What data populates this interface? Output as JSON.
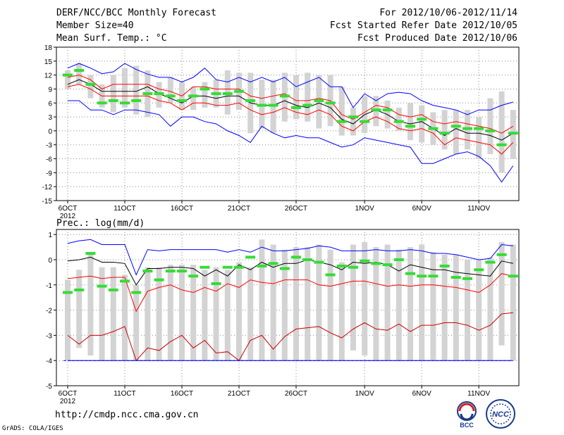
{
  "header": {
    "title": "DERF/NCC/BCC Monthly Forecast",
    "member_size": "Member Size=40",
    "variable": "Mean Surf. Temp.: °C",
    "forecast_period": "For 2012/10/06-2012/11/14",
    "started_date": "Fcst Started Refer Date 2012/10/05",
    "produced_date": "Fcst Produced Date 2012/10/06"
  },
  "footer": {
    "url": "http://cmdp.ncc.cma.gov.cn",
    "grads": "GrADS: COLA/IGES",
    "logo_left": "BCC",
    "logo_right": "NCC"
  },
  "colors": {
    "max_min": "#0000ff",
    "percentile": "#ff0000",
    "mean": "#000000",
    "observed": "#33dd33",
    "box": "#d3d3d3",
    "baseline": "#0000ff"
  },
  "chart_data": [
    {
      "type": "line",
      "title": "Mean Surf. Temp.: °C",
      "ylim": [
        -15,
        18
      ],
      "yticks": [
        -15,
        -12,
        -9,
        -6,
        -3,
        0,
        3,
        6,
        9,
        12,
        15,
        18
      ],
      "x_count": 40,
      "x_ticks": [
        {
          "i": 0,
          "label": "6OCT",
          "sub": "2012"
        },
        {
          "i": 5,
          "label": "11OCT"
        },
        {
          "i": 10,
          "label": "16OCT"
        },
        {
          "i": 15,
          "label": "21OCT"
        },
        {
          "i": 20,
          "label": "26OCT"
        },
        {
          "i": 26,
          "label": "1NOV"
        },
        {
          "i": 31,
          "label": "6NOV"
        },
        {
          "i": 36,
          "label": "11NOV"
        }
      ],
      "series": [
        {
          "name": "max",
          "color": "#0000ff",
          "values": [
            13.5,
            14.5,
            13.5,
            12.3,
            12.7,
            14.5,
            13.2,
            12.2,
            11.5,
            11.5,
            10.5,
            11.5,
            13.5,
            11.0,
            10.5,
            11.5,
            10.5,
            11.5,
            10.5,
            11.5,
            9.5,
            10.5,
            11.5,
            9.5,
            9.5,
            5.0,
            8.0,
            6.5,
            8.0,
            8.3,
            8.0,
            6.5,
            5.5,
            5.0,
            4.5,
            3.5,
            4.5,
            4.5,
            5.5,
            6.2
          ]
        },
        {
          "name": "p90",
          "color": "#ff0000",
          "values": [
            11.5,
            12.0,
            11.0,
            9.0,
            10.0,
            10.0,
            10.0,
            10.0,
            9.0,
            8.5,
            7.5,
            9.5,
            9.5,
            9.0,
            9.0,
            9.0,
            7.5,
            7.0,
            7.5,
            8.0,
            6.5,
            6.5,
            7.0,
            6.5,
            3.5,
            2.5,
            4.0,
            5.5,
            5.0,
            3.5,
            3.0,
            3.5,
            2.0,
            1.5,
            2.0,
            1.5,
            1.0,
            0.5,
            -0.5,
            1.0
          ]
        },
        {
          "name": "mean",
          "color": "#000000",
          "values": [
            10.0,
            11.0,
            10.0,
            8.5,
            8.5,
            8.5,
            8.5,
            9.5,
            8.0,
            7.0,
            6.0,
            7.5,
            7.5,
            7.0,
            7.5,
            7.5,
            6.0,
            5.5,
            5.5,
            6.5,
            5.5,
            5.0,
            6.0,
            5.0,
            2.5,
            1.5,
            3.5,
            4.5,
            3.5,
            2.0,
            1.5,
            2.0,
            0.5,
            -1.0,
            0.5,
            -0.5,
            -0.5,
            -1.0,
            -2.0,
            -0.5
          ]
        },
        {
          "name": "p10",
          "color": "#ff0000",
          "values": [
            9.5,
            10.0,
            9.0,
            7.5,
            7.5,
            7.5,
            7.5,
            7.5,
            6.5,
            6.0,
            4.5,
            6.0,
            6.0,
            5.5,
            5.5,
            6.0,
            4.5,
            3.5,
            4.0,
            5.0,
            4.0,
            3.5,
            4.5,
            3.5,
            1.0,
            0.0,
            2.0,
            3.0,
            2.0,
            0.5,
            0.0,
            0.5,
            -0.5,
            -3.0,
            -1.5,
            -2.0,
            -2.5,
            -3.0,
            -5.0,
            -2.5
          ]
        },
        {
          "name": "min",
          "color": "#0000ff",
          "values": [
            6.5,
            6.5,
            4.5,
            4.5,
            3.5,
            4.5,
            4.5,
            4.0,
            3.5,
            1.0,
            3.0,
            3.0,
            2.0,
            1.5,
            0.0,
            -1.0,
            -2.5,
            1.0,
            -0.5,
            -1.5,
            -1.0,
            -1.5,
            -1.5,
            -2.5,
            -3.5,
            -3.0,
            -1.5,
            -2.0,
            -2.5,
            -3.0,
            -3.5,
            -7.0,
            -7.0,
            -6.0,
            -5.0,
            -4.5,
            -5.5,
            -7.5,
            -11.0,
            -7.5
          ]
        }
      ],
      "boxes": {
        "name": "ensemble range",
        "color": "#d3d3d3",
        "low": [
          9.0,
          10.0,
          7.0,
          5.0,
          4.0,
          5.0,
          3.5,
          3.0,
          5.0,
          6.0,
          4.5,
          4.5,
          5.0,
          5.0,
          3.5,
          4.5,
          -0.5,
          0.5,
          -0.5,
          2.0,
          2.5,
          2.0,
          0.5,
          1.0,
          -1.0,
          -1.0,
          -0.5,
          1.0,
          0.5,
          0.0,
          -2.0,
          -2.5,
          -3.0,
          -4.0,
          -5.0,
          -4.0,
          -6.0,
          -5.0,
          -9.0,
          -6.0
        ],
        "high": [
          13.0,
          14.5,
          12.0,
          10.0,
          12.0,
          13.5,
          14.0,
          13.0,
          10.5,
          11.5,
          10.5,
          9.5,
          10.5,
          11.0,
          13.0,
          12.5,
          12.5,
          11.0,
          11.0,
          12.5,
          12.0,
          12.5,
          12.0,
          12.0,
          9.5,
          5.0,
          7.5,
          7.5,
          6.5,
          5.0,
          6.0,
          5.5,
          4.0,
          4.5,
          4.5,
          4.5,
          3.0,
          7.0,
          8.5,
          4.5
        ]
      },
      "observed": {
        "name": "observed",
        "color": "#33dd33",
        "values": [
          12.0,
          13.0,
          10.0,
          6.0,
          6.5,
          6.0,
          6.5,
          8.0,
          8.0,
          7.5,
          6.5,
          7.5,
          9.0,
          8.0,
          8.0,
          8.5,
          6.5,
          5.5,
          5.5,
          7.5,
          5.0,
          5.5,
          6.5,
          6.0,
          2.0,
          3.0,
          2.0,
          4.5,
          4.5,
          2.0,
          1.0,
          2.5,
          0.5,
          -0.5,
          1.0,
          0.5,
          0.5,
          0.0,
          -3.0,
          -0.5
        ]
      }
    },
    {
      "type": "line",
      "title": "Prec.: log(mm/d)",
      "ylim": [
        -5,
        1.2
      ],
      "yticks": [
        -5,
        -4,
        -3,
        -2,
        -1,
        0,
        1
      ],
      "x_count": 40,
      "x_ticks": [
        {
          "i": 0,
          "label": "6OCT",
          "sub": "2012"
        },
        {
          "i": 5,
          "label": "11OCT"
        },
        {
          "i": 10,
          "label": "16OCT"
        },
        {
          "i": 15,
          "label": "21OCT"
        },
        {
          "i": 20,
          "label": "26OCT"
        },
        {
          "i": 26,
          "label": "1NOV"
        },
        {
          "i": 31,
          "label": "6NOV"
        },
        {
          "i": 36,
          "label": "11NOV"
        }
      ],
      "series": [
        {
          "name": "max",
          "color": "#0000ff",
          "values": [
            0.65,
            0.75,
            0.8,
            0.6,
            0.6,
            0.6,
            -0.6,
            0.4,
            0.35,
            0.4,
            0.4,
            0.4,
            0.4,
            0.4,
            0.3,
            0.4,
            0.3,
            0.5,
            0.35,
            0.35,
            0.4,
            0.45,
            0.55,
            0.5,
            0.35,
            0.35,
            0.35,
            0.4,
            0.35,
            0.35,
            0.4,
            0.35,
            0.25,
            0.25,
            0.2,
            0.1,
            0.0,
            0.05,
            0.6,
            0.55
          ]
        },
        {
          "name": "p90",
          "color": "#000000",
          "values": [
            -0.05,
            0.0,
            0.1,
            -0.1,
            -0.1,
            -0.15,
            -1.0,
            -0.35,
            -0.35,
            -0.3,
            -0.3,
            -0.35,
            -0.65,
            -0.4,
            -0.65,
            -0.2,
            -0.4,
            -0.1,
            -0.3,
            -0.15,
            -0.15,
            0.0,
            -0.1,
            -0.2,
            -0.4,
            -0.1,
            -0.15,
            -0.1,
            -0.2,
            -0.45,
            -0.2,
            -0.3,
            -0.4,
            -0.4,
            -0.5,
            -0.55,
            -0.6,
            -0.65,
            -0.05,
            -0.15
          ]
        },
        {
          "name": "p50",
          "color": "#ff0000",
          "values": [
            -0.75,
            -0.7,
            -0.65,
            -0.75,
            -0.7,
            -0.7,
            -2.05,
            -1.25,
            -1.1,
            -1.0,
            -1.2,
            -1.3,
            -1.1,
            -1.25,
            -0.95,
            -1.1,
            -0.8,
            -0.9,
            -0.95,
            -0.8,
            -0.8,
            -0.8,
            -1.0,
            -1.05,
            -0.95,
            -0.85,
            -0.85,
            -0.95,
            -1.05,
            -1.0,
            -1.05,
            -1.0,
            -1.0,
            -1.05,
            -1.1,
            -1.2,
            -1.3,
            -1.0,
            -0.55,
            -0.65
          ]
        },
        {
          "name": "p10",
          "color": "#cc0000",
          "values": [
            -3.0,
            -3.35,
            -3.0,
            -3.0,
            -2.85,
            -2.65,
            -4.0,
            -3.5,
            -3.6,
            -3.25,
            -3.0,
            -3.5,
            -3.2,
            -3.7,
            -3.65,
            -4.0,
            -3.2,
            -3.0,
            -3.55,
            -3.05,
            -2.75,
            -2.7,
            -2.65,
            -2.9,
            -3.1,
            -2.75,
            -2.5,
            -2.75,
            -2.8,
            -2.55,
            -2.85,
            -2.6,
            -2.6,
            -2.5,
            -2.5,
            -2.6,
            -2.8,
            -2.6,
            -2.15,
            -2.1
          ]
        },
        {
          "name": "min",
          "color": "#0000ff",
          "values": [
            -4.0,
            -4.0,
            -4.0,
            -4.0,
            -4.0,
            -4.0,
            -4.0,
            -4.0,
            -4.0,
            -4.0,
            -4.0,
            -4.0,
            -4.0,
            -4.0,
            -4.0,
            -4.0,
            -4.0,
            -4.0,
            -4.0,
            -4.0,
            -4.0,
            -4.0,
            -4.0,
            -4.0,
            -4.0,
            -4.0,
            -4.0,
            -4.0,
            -4.0,
            -4.0,
            -4.0,
            -4.0,
            -4.0,
            -4.0,
            -4.0,
            -4.0,
            -4.0,
            -4.0,
            -4.0,
            -4.0
          ]
        }
      ],
      "boxes": {
        "name": "ensemble range",
        "color": "#d3d3d3",
        "low": [
          -4.0,
          -3.5,
          -3.8,
          -4.0,
          -4.0,
          -4.0,
          -4.0,
          -4.0,
          -4.0,
          -4.0,
          -4.0,
          -4.0,
          -4.0,
          -4.0,
          -4.0,
          -4.0,
          -4.0,
          -4.0,
          -4.0,
          -4.0,
          -4.0,
          -4.0,
          -4.0,
          -4.0,
          -4.0,
          -3.6,
          -3.8,
          -4.0,
          -4.0,
          -4.0,
          -4.0,
          -4.0,
          -4.0,
          -4.0,
          -4.0,
          -4.0,
          -4.0,
          -4.0,
          -3.4,
          -4.0
        ],
        "high": [
          -0.8,
          -0.4,
          0.3,
          -0.3,
          -0.3,
          -0.6,
          -1.0,
          -0.3,
          -0.3,
          -0.2,
          -0.2,
          -0.2,
          -0.4,
          -0.3,
          -0.4,
          -0.1,
          -0.3,
          0.8,
          0.6,
          0.4,
          0.5,
          0.5,
          0.6,
          0.4,
          -0.1,
          0.6,
          0.7,
          0.5,
          0.6,
          0.4,
          0.5,
          0.6,
          0.3,
          0.2,
          0.2,
          0.0,
          0.0,
          0.1,
          0.7,
          0.6
        ]
      },
      "observed": {
        "name": "observed",
        "color": "#33dd33",
        "values": [
          -1.3,
          -1.2,
          0.25,
          -1.05,
          -1.2,
          -0.85,
          -1.3,
          -0.45,
          -0.8,
          -0.45,
          -0.45,
          -0.65,
          -0.3,
          -0.95,
          -0.3,
          -0.3,
          0.1,
          -0.25,
          -0.15,
          -0.35,
          0.1,
          0.0,
          -0.1,
          -0.6,
          -0.25,
          -0.3,
          -0.05,
          -0.15,
          -0.2,
          0.0,
          -0.55,
          -0.65,
          -0.65,
          -0.25,
          -0.7,
          -0.75,
          -0.4,
          -0.1,
          0.2,
          -0.65
        ]
      },
      "baseline": -4.0
    }
  ]
}
